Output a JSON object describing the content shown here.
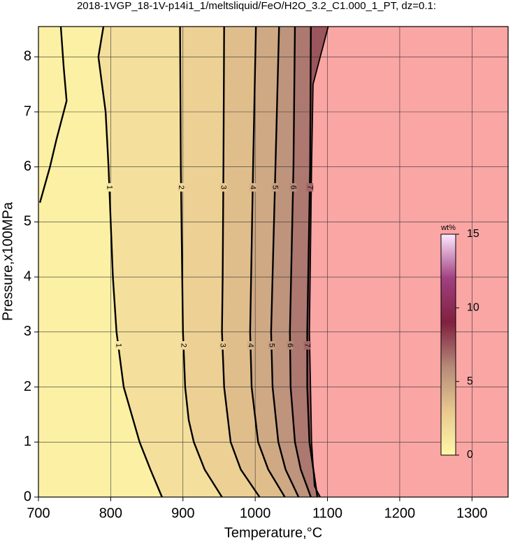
{
  "chart_data": {
    "type": "contour",
    "title": "2018-1VGP_18-1V-p14i1_1/meltsliquid/FeO/H2O_3.2_C1.000_1_PT, dz=0.1:",
    "xlabel": "Temperature,°C",
    "ylabel": "Pressure,x100MPa",
    "xlim": [
      700,
      1350
    ],
    "ylim": [
      0,
      8.55
    ],
    "xticks": [
      700,
      800,
      900,
      1000,
      1100,
      1200,
      1300
    ],
    "yticks": [
      0,
      1,
      2,
      3,
      4,
      5,
      6,
      7,
      8
    ],
    "grid": true,
    "contours": [
      {
        "level": 1,
        "pressure": [
          8.55,
          8,
          7,
          6,
          5,
          4,
          3,
          2,
          1,
          0.5,
          0,
          null,
          8.55,
          7.8,
          7.2,
          6.5,
          6,
          5.35
        ],
        "temperature": [
          790,
          783,
          793,
          797,
          800,
          803,
          808,
          818,
          840,
          855,
          871,
          null,
          731,
          735,
          739,
          725,
          716,
          702
        ]
      },
      {
        "level": 2,
        "pressure": [
          8.55,
          6,
          4,
          3,
          2,
          1.4,
          1,
          0.5,
          0
        ],
        "temperature": [
          896,
          897,
          899,
          900,
          903,
          908,
          915,
          930,
          954
        ]
      },
      {
        "level": 3,
        "pressure": [
          8.55,
          6,
          4,
          3,
          2,
          1,
          0.5,
          0
        ],
        "temperature": [
          957,
          956,
          955,
          954,
          957,
          966,
          980,
          1006
        ]
      },
      {
        "level": 4,
        "pressure": [
          8.55,
          6,
          3,
          2,
          1,
          0.5,
          0
        ],
        "temperature": [
          1001,
          997,
          993,
          995,
          1004,
          1018,
          1041
        ]
      },
      {
        "level": 5,
        "pressure": [
          8.55,
          6,
          3,
          2,
          1,
          0.5,
          0
        ],
        "temperature": [
          1033,
          1028,
          1022,
          1024,
          1032,
          1042,
          1060
        ]
      },
      {
        "level": 6,
        "pressure": [
          8.55,
          6,
          3,
          2,
          1,
          0.5,
          0
        ],
        "temperature": [
          1055,
          1053,
          1048,
          1049,
          1055,
          1063,
          1077
        ]
      },
      {
        "level": 7,
        "pressure": [
          8.55,
          6,
          3,
          2,
          1,
          0
        ],
        "temperature": [
          1077,
          1076,
          1072,
          1072,
          1075,
          1086
        ]
      }
    ],
    "boundary": {
      "pressure": [
        8.55,
        8,
        7.5,
        6,
        3,
        1,
        0.2,
        0
      ],
      "temperature": [
        1101,
        1090,
        1080,
        1078,
        1075,
        1078,
        1082,
        1090
      ],
      "color": "#f9a6a4"
    },
    "colorbar": {
      "label": "wt%",
      "clim": [
        0,
        15
      ],
      "ticks": [
        0,
        5,
        10,
        15
      ],
      "stops": [
        0,
        3,
        6,
        9,
        12,
        15
      ],
      "colors": [
        "#fff8a8",
        "#e8c890",
        "#b58a78",
        "#802040",
        "#a04080",
        "#ffe8ff"
      ]
    }
  }
}
